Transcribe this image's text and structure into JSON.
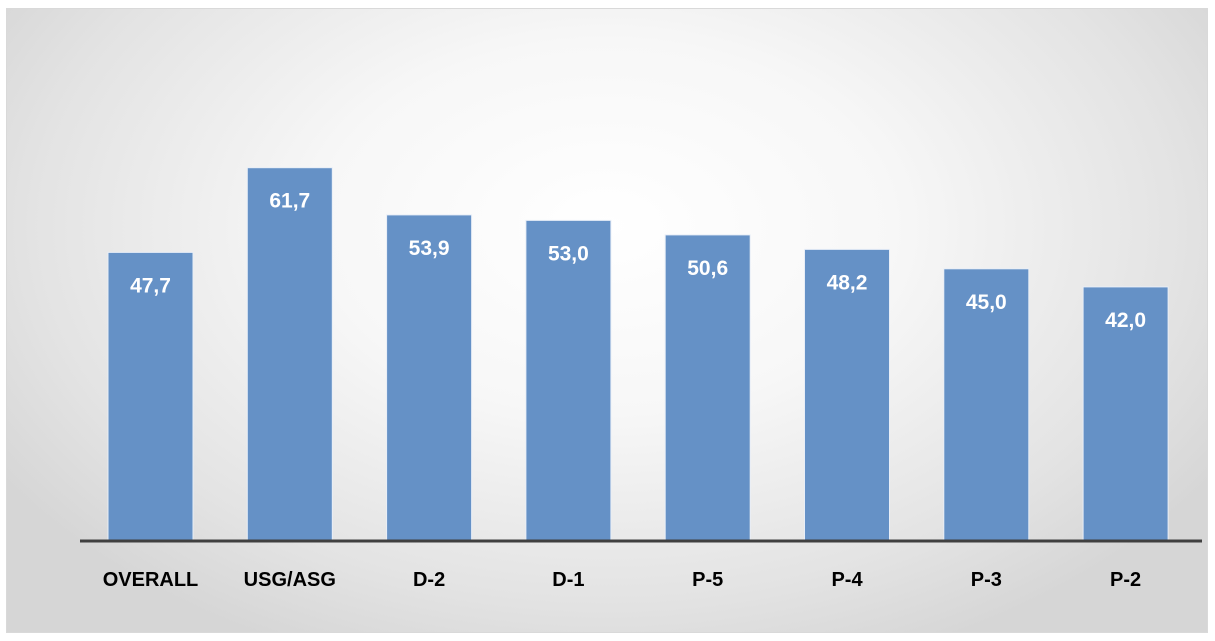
{
  "chart_data": {
    "type": "bar",
    "categories": [
      "OVERALL",
      "USG/ASG",
      "D-2",
      "D-1",
      "P-5",
      "P-4",
      "P-3",
      "P-2"
    ],
    "values": [
      47.7,
      61.7,
      53.9,
      53.0,
      50.6,
      48.2,
      45.0,
      42.0
    ],
    "data_labels": [
      "47,7",
      "61,7",
      "53,9",
      "53,0",
      "50,6",
      "48,2",
      "45,0",
      "42,0"
    ],
    "title": "",
    "xlabel": "",
    "ylabel": "",
    "ylim": [
      0,
      100
    ],
    "grid": false,
    "legend": "none",
    "colors": {
      "bar": "#6591c6",
      "label": "#ffffff",
      "axis": "#404040"
    }
  }
}
